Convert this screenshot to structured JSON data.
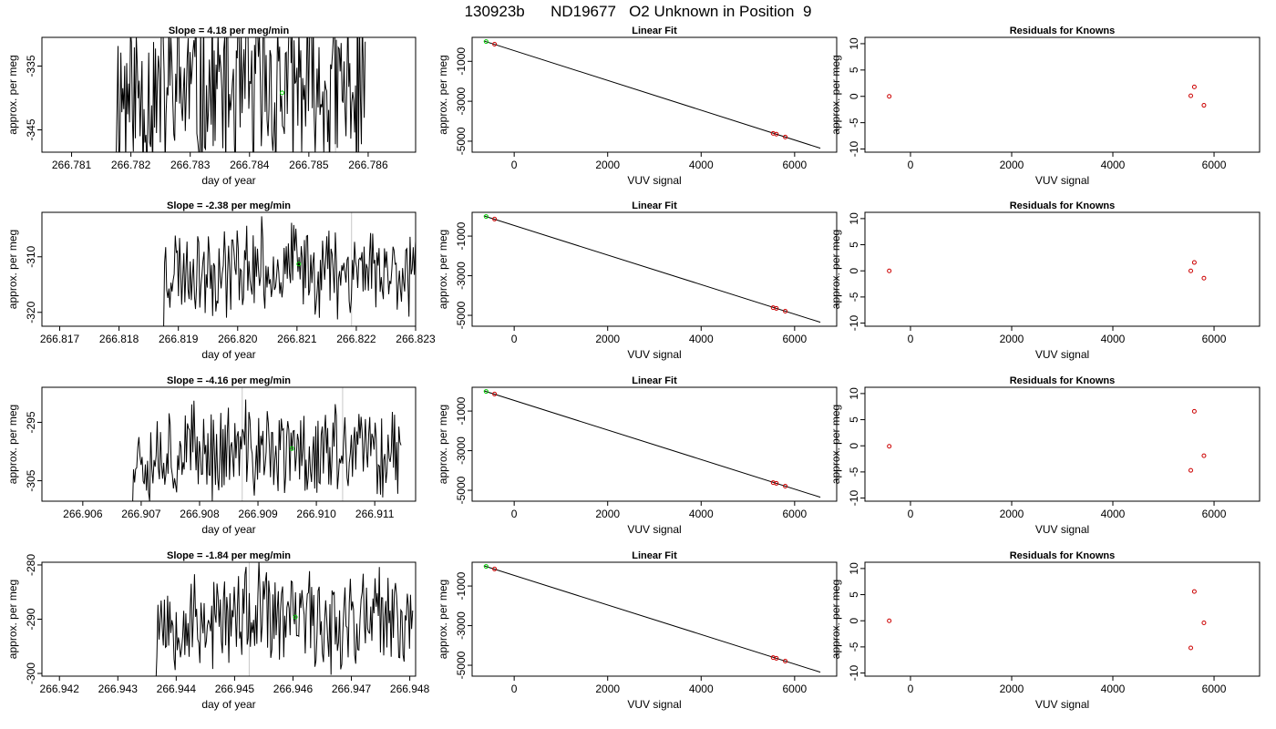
{
  "figure_title": "130923b      ND19677   O2 Unknown in Position  9",
  "chart_data": [
    {
      "type": "line",
      "row": 0,
      "col": 0,
      "title": "Slope =  4.18  per meg/min",
      "xlabel": "day of year",
      "ylabel": "approx. per meg",
      "xlim": [
        266.7805,
        266.7868
      ],
      "ylim": [
        -348.5,
        -330.5
      ],
      "xticks": [
        266.781,
        266.782,
        266.783,
        266.784,
        266.785,
        266.786
      ],
      "xtick_labels": [
        "266.781",
        "266.782",
        "266.783",
        "266.784",
        "266.785",
        "266.786"
      ],
      "yticks": [
        -335,
        -345
      ],
      "ytick_labels": [
        "-335",
        "-345"
      ],
      "vlines": [
        266.78545
      ],
      "highlight_point": {
        "x": 266.78455,
        "y": -339.2,
        "color": "#00cc00"
      },
      "series": [
        {
          "color": "#000000",
          "x_start": 266.78175,
          "x_end": 266.78595,
          "n": 260,
          "seed": 11,
          "y_center": -339,
          "y_amp": 13
        }
      ]
    },
    {
      "type": "scatter",
      "row": 0,
      "col": 1,
      "title": "Linear Fit",
      "xlabel": "VUV signal",
      "ylabel": "approx. per meg",
      "xlim": [
        -900,
        6900
      ],
      "ylim": [
        -5550,
        200
      ],
      "xticks": [
        0,
        2000,
        4000,
        6000
      ],
      "xtick_labels": [
        "0",
        "2000",
        "4000",
        "6000"
      ],
      "yticks": [
        -1000,
        -3000,
        -5000
      ],
      "ytick_labels": [
        "-1000",
        "-3000",
        "-5000"
      ],
      "fit_line": {
        "x0": -650,
        "y0": 20,
        "x1": 6550,
        "y1": -5350
      },
      "points_red": [
        {
          "x": -420,
          "y": -142
        },
        {
          "x": 5540,
          "y": -4610
        },
        {
          "x": 5610,
          "y": -4650
        },
        {
          "x": 5800,
          "y": -4790
        }
      ],
      "points_green": [
        {
          "x": -600,
          "y": -10
        }
      ]
    },
    {
      "type": "scatter",
      "row": 0,
      "col": 2,
      "title": "Residuals for Knowns",
      "xlabel": "VUV signal",
      "ylabel": "approx. per meg",
      "xlim": [
        -900,
        6900
      ],
      "ylim": [
        -10.6,
        11.2
      ],
      "xticks": [
        0,
        2000,
        4000,
        6000
      ],
      "xtick_labels": [
        "0",
        "2000",
        "4000",
        "6000"
      ],
      "yticks": [
        10,
        5,
        0,
        -5,
        -10
      ],
      "ytick_labels": [
        "10",
        "5",
        "0",
        "-5",
        "-10"
      ],
      "points_red": [
        {
          "x": -420,
          "y": 0
        },
        {
          "x": 5540,
          "y": 0.1
        },
        {
          "x": 5610,
          "y": 1.8
        },
        {
          "x": 5800,
          "y": -1.7
        }
      ]
    },
    {
      "type": "line",
      "row": 1,
      "col": 0,
      "title": "Slope =  -2.38  per meg/min",
      "xlabel": "day of year",
      "ylabel": "approx. per meg",
      "xlim": [
        266.8167,
        266.823
      ],
      "ylim": [
        -322.5,
        -302
      ],
      "xticks": [
        266.817,
        266.818,
        266.819,
        266.82,
        266.821,
        266.822,
        266.823
      ],
      "xtick_labels": [
        "266.817",
        "266.818",
        "266.819",
        "266.820",
        "266.821",
        "266.822",
        "266.823"
      ],
      "yticks": [
        -310,
        -320
      ],
      "ytick_labels": [
        "-310",
        "-320"
      ],
      "vlines": [
        266.82192
      ],
      "highlight_point": {
        "x": 266.82103,
        "y": -311.3,
        "color": "#00cc00"
      },
      "series": [
        {
          "color": "#000000",
          "x_start": 266.81875,
          "x_end": 266.82305,
          "n": 240,
          "seed": 23,
          "y_center": -312,
          "y_amp": 7
        }
      ]
    },
    {
      "type": "scatter",
      "row": 1,
      "col": 1,
      "title": "Linear Fit",
      "xlabel": "VUV signal",
      "ylabel": "approx. per meg",
      "xlim": [
        -900,
        6900
      ],
      "ylim": [
        -5550,
        200
      ],
      "xticks": [
        0,
        2000,
        4000,
        6000
      ],
      "xtick_labels": [
        "0",
        "2000",
        "4000",
        "6000"
      ],
      "yticks": [
        -1000,
        -3000,
        -5000
      ],
      "ytick_labels": [
        "-1000",
        "-3000",
        "-5000"
      ],
      "fit_line": {
        "x0": -650,
        "y0": 20,
        "x1": 6550,
        "y1": -5350
      },
      "points_red": [
        {
          "x": -420,
          "y": -142
        },
        {
          "x": 5540,
          "y": -4610
        },
        {
          "x": 5610,
          "y": -4650
        },
        {
          "x": 5800,
          "y": -4790
        }
      ],
      "points_green": [
        {
          "x": -600,
          "y": -10
        }
      ]
    },
    {
      "type": "scatter",
      "row": 1,
      "col": 2,
      "title": "Residuals for Knowns",
      "xlabel": "VUV signal",
      "ylabel": "approx. per meg",
      "xlim": [
        -900,
        6900
      ],
      "ylim": [
        -10.6,
        11.2
      ],
      "xticks": [
        0,
        2000,
        4000,
        6000
      ],
      "xtick_labels": [
        "0",
        "2000",
        "4000",
        "6000"
      ],
      "yticks": [
        10,
        5,
        0,
        -5,
        -10
      ],
      "ytick_labels": [
        "10",
        "5",
        "0",
        "-5",
        "-10"
      ],
      "points_red": [
        {
          "x": -420,
          "y": 0
        },
        {
          "x": 5540,
          "y": 0
        },
        {
          "x": 5610,
          "y": 1.6
        },
        {
          "x": 5800,
          "y": -1.4
        }
      ]
    },
    {
      "type": "line",
      "row": 2,
      "col": 0,
      "title": "Slope =  -4.16  per meg/min",
      "xlabel": "day of year",
      "ylabel": "approx. per meg",
      "xlim": [
        266.9053,
        266.9117
      ],
      "ylim": [
        -308.5,
        -289
      ],
      "xticks": [
        266.906,
        266.907,
        266.908,
        266.909,
        266.91,
        266.911
      ],
      "xtick_labels": [
        "266.906",
        "266.907",
        "266.908",
        "266.909",
        "266.910",
        "266.911"
      ],
      "yticks": [
        -295,
        -305
      ],
      "ytick_labels": [
        "-295",
        "-305"
      ],
      "vlines": [
        266.90873,
        266.91045
      ],
      "highlight_point": {
        "x": 266.90958,
        "y": -299.5,
        "color": "#00cc00"
      },
      "series": [
        {
          "color": "#000000",
          "x_start": 266.90685,
          "x_end": 266.91145,
          "n": 250,
          "seed": 37,
          "y_center": -300,
          "y_amp": 7
        }
      ]
    },
    {
      "type": "scatter",
      "row": 2,
      "col": 1,
      "title": "Linear Fit",
      "xlabel": "VUV signal",
      "ylabel": "approx. per meg",
      "xlim": [
        -900,
        6900
      ],
      "ylim": [
        -5550,
        200
      ],
      "xticks": [
        0,
        2000,
        4000,
        6000
      ],
      "xtick_labels": [
        "0",
        "2000",
        "4000",
        "6000"
      ],
      "yticks": [
        -1000,
        -3000,
        -5000
      ],
      "ytick_labels": [
        "-1000",
        "-3000",
        "-5000"
      ],
      "fit_line": {
        "x0": -650,
        "y0": 20,
        "x1": 6550,
        "y1": -5350
      },
      "points_red": [
        {
          "x": -420,
          "y": -142
        },
        {
          "x": 5540,
          "y": -4610
        },
        {
          "x": 5610,
          "y": -4650
        },
        {
          "x": 5800,
          "y": -4790
        }
      ],
      "points_green": [
        {
          "x": -600,
          "y": -10
        }
      ]
    },
    {
      "type": "scatter",
      "row": 2,
      "col": 2,
      "title": "Residuals for Knowns",
      "xlabel": "VUV signal",
      "ylabel": "approx. per meg",
      "xlim": [
        -900,
        6900
      ],
      "ylim": [
        -10.6,
        11.2
      ],
      "xticks": [
        0,
        2000,
        4000,
        6000
      ],
      "xtick_labels": [
        "0",
        "2000",
        "4000",
        "6000"
      ],
      "yticks": [
        10,
        5,
        0,
        -5,
        -10
      ],
      "ytick_labels": [
        "10",
        "5",
        "0",
        "-5",
        "-10"
      ],
      "points_red": [
        {
          "x": -420,
          "y": -0.1
        },
        {
          "x": 5540,
          "y": -4.7
        },
        {
          "x": 5610,
          "y": 6.6
        },
        {
          "x": 5800,
          "y": -1.9
        }
      ]
    },
    {
      "type": "line",
      "row": 3,
      "col": 0,
      "title": "Slope =  -1.84  per meg/min",
      "xlabel": "day of year",
      "ylabel": "approx. per meg",
      "xlim": [
        266.9417,
        266.9481
      ],
      "ylim": [
        -300.5,
        -279.5
      ],
      "xticks": [
        266.942,
        266.943,
        266.944,
        266.945,
        266.946,
        266.947,
        266.948
      ],
      "xtick_labels": [
        "266.942",
        "266.943",
        "266.944",
        "266.945",
        "266.946",
        "266.947",
        "266.948"
      ],
      "yticks": [
        -280,
        -290,
        -300
      ],
      "ytick_labels": [
        "-280",
        "-290",
        "-300"
      ],
      "vlines": [
        266.94525
      ],
      "highlight_point": {
        "x": 266.94604,
        "y": -289.6,
        "color": "#00cc00"
      },
      "series": [
        {
          "color": "#000000",
          "x_start": 266.94365,
          "x_end": 266.94805,
          "n": 240,
          "seed": 53,
          "y_center": -290,
          "y_amp": 8
        }
      ]
    },
    {
      "type": "scatter",
      "row": 3,
      "col": 1,
      "title": "Linear Fit",
      "xlabel": "VUV signal",
      "ylabel": "approx. per meg",
      "xlim": [
        -900,
        6900
      ],
      "ylim": [
        -5550,
        200
      ],
      "xticks": [
        0,
        2000,
        4000,
        6000
      ],
      "xtick_labels": [
        "0",
        "2000",
        "4000",
        "6000"
      ],
      "yticks": [
        -1000,
        -3000,
        -5000
      ],
      "ytick_labels": [
        "-1000",
        "-3000",
        "-5000"
      ],
      "fit_line": {
        "x0": -650,
        "y0": 20,
        "x1": 6550,
        "y1": -5350
      },
      "points_red": [
        {
          "x": -420,
          "y": -142
        },
        {
          "x": 5540,
          "y": -4610
        },
        {
          "x": 5610,
          "y": -4650
        },
        {
          "x": 5800,
          "y": -4790
        }
      ],
      "points_green": [
        {
          "x": -600,
          "y": -10
        }
      ]
    },
    {
      "type": "scatter",
      "row": 3,
      "col": 2,
      "title": "Residuals for Knowns",
      "xlabel": "VUV signal",
      "ylabel": "approx. per meg",
      "xlim": [
        -900,
        6900
      ],
      "ylim": [
        -10.6,
        11.2
      ],
      "xticks": [
        0,
        2000,
        4000,
        6000
      ],
      "xtick_labels": [
        "0",
        "2000",
        "4000",
        "6000"
      ],
      "yticks": [
        10,
        5,
        0,
        -5,
        -10
      ],
      "ytick_labels": [
        "10",
        "5",
        "0",
        "-5",
        "-10"
      ],
      "points_red": [
        {
          "x": -420,
          "y": 0
        },
        {
          "x": 5540,
          "y": -5.2
        },
        {
          "x": 5610,
          "y": 5.6
        },
        {
          "x": 5800,
          "y": -0.4
        }
      ]
    }
  ]
}
